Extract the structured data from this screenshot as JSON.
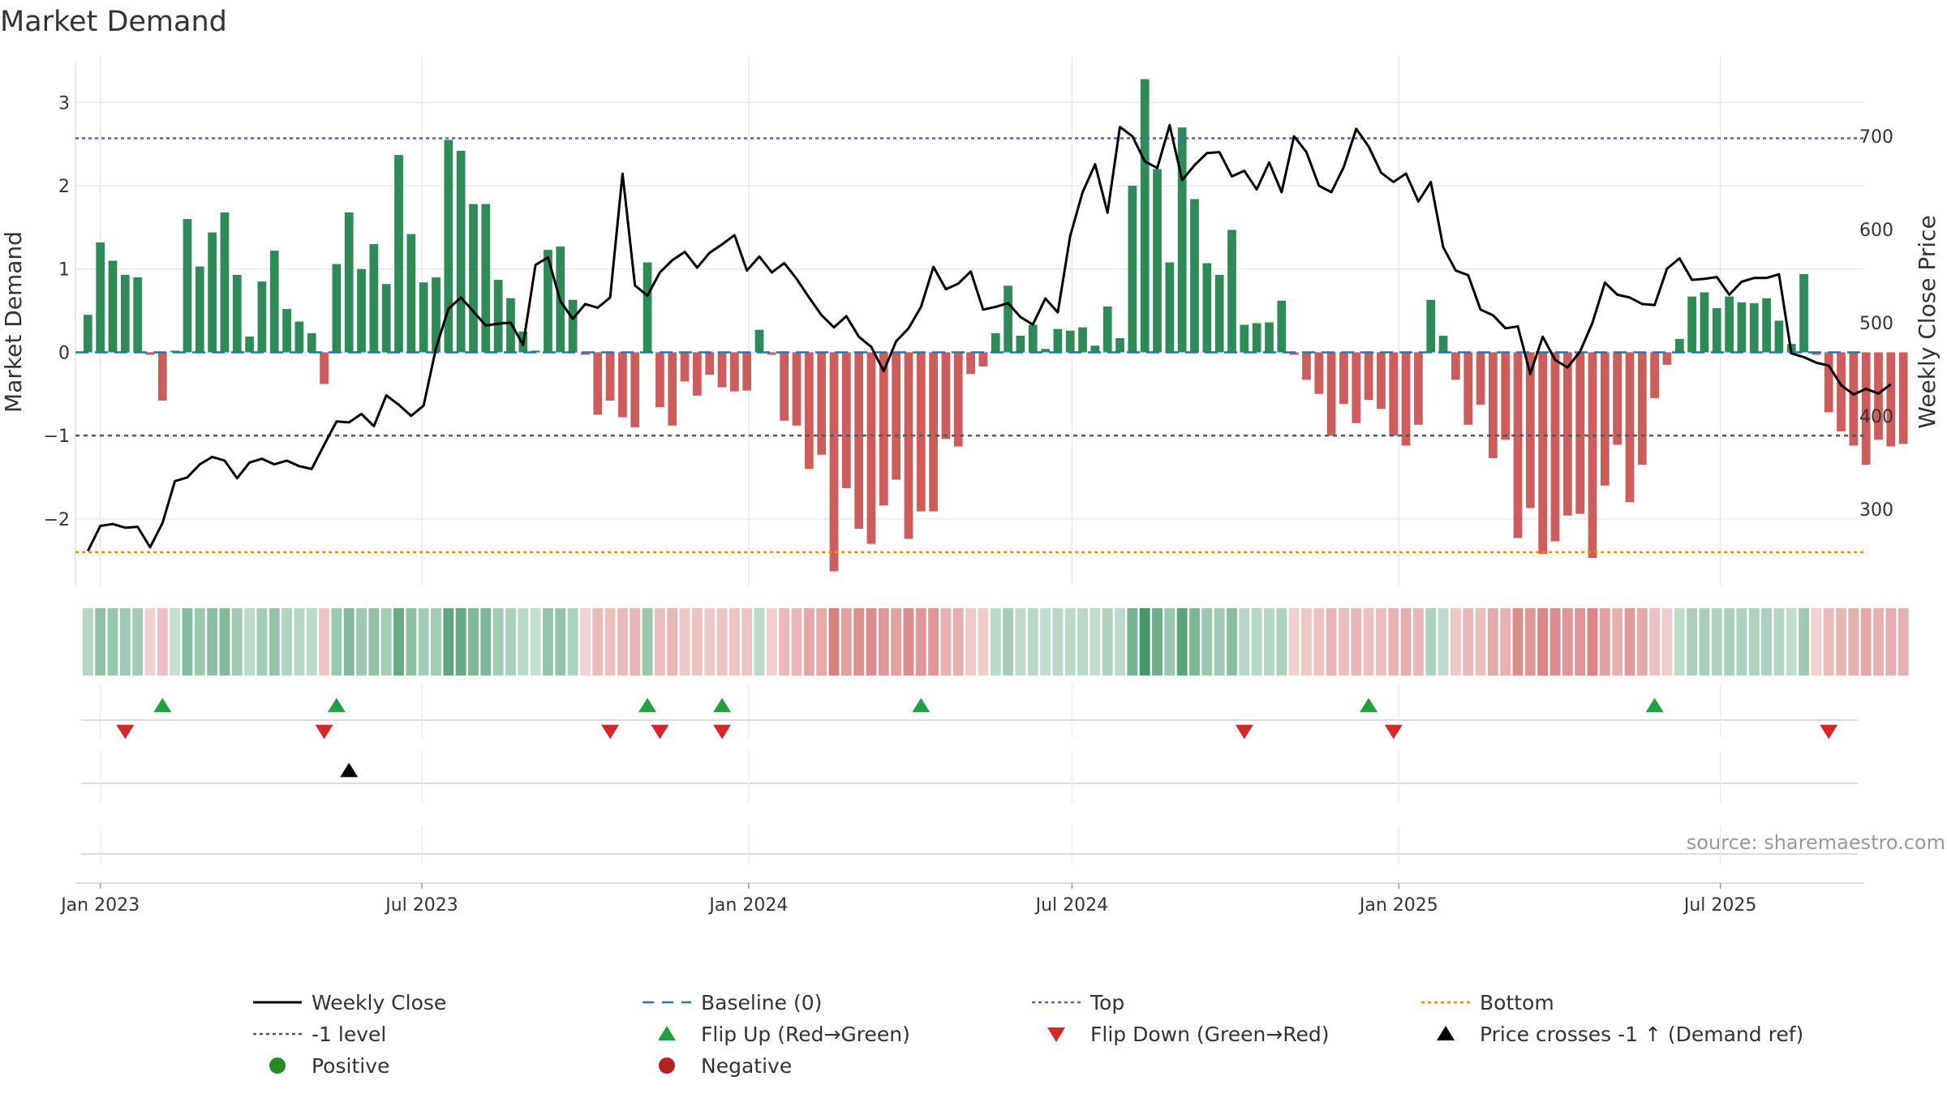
{
  "chart_data": {
    "type": "bar",
    "title": "Market Demand",
    "ylabel": "Market Demand",
    "y2label": "Weekly Close Price",
    "ylim": [
      -2.8,
      3.5
    ],
    "y2lim": [
      218,
      781
    ],
    "yticks": [
      3,
      2,
      1,
      0,
      -1,
      -2
    ],
    "ytick_labels": [
      "3",
      "2",
      "1",
      "0",
      "−1",
      "−2"
    ],
    "y2ticks": [
      700,
      600,
      500,
      400,
      300
    ],
    "y2tick_labels": [
      "700",
      "600",
      "500",
      "400",
      "300"
    ],
    "x_start": "2022-12-18",
    "x_end": "2025-09-20",
    "x_ticks": [
      {
        "label": "Jan 2023",
        "date": "2023-01-01"
      },
      {
        "label": "Jul 2023",
        "date": "2023-07-01"
      },
      {
        "label": "Jan 2024",
        "date": "2024-01-01"
      },
      {
        "label": "Jul 2024",
        "date": "2024-07-01"
      },
      {
        "label": "Jan 2025",
        "date": "2025-01-01"
      },
      {
        "label": "Jul 2025",
        "date": "2025-07-01"
      }
    ],
    "levels": {
      "top": 2.57,
      "bottom": -2.4,
      "minus_one": -1,
      "baseline": 0
    },
    "demand": [
      0.45,
      1.32,
      1.1,
      0.93,
      0.9,
      -0.03,
      -0.58,
      0.02,
      1.6,
      1.03,
      1.44,
      1.68,
      0.93,
      0.19,
      0.85,
      1.22,
      0.52,
      0.37,
      0.23,
      -0.38,
      1.06,
      1.68,
      1.0,
      1.3,
      0.82,
      2.37,
      1.42,
      0.84,
      0.9,
      2.55,
      2.42,
      1.78,
      1.78,
      0.87,
      0.65,
      0.25,
      0.02,
      1.23,
      1.27,
      0.63,
      -0.03,
      -0.75,
      -0.58,
      -0.78,
      -0.9,
      1.08,
      -0.66,
      -0.88,
      -0.35,
      -0.52,
      -0.27,
      -0.42,
      -0.47,
      -0.46,
      0.27,
      -0.03,
      -0.82,
      -0.88,
      -1.4,
      -1.23,
      -2.63,
      -1.63,
      -2.12,
      -2.3,
      -1.84,
      -1.53,
      -2.24,
      -1.91,
      -1.91,
      -1.04,
      -1.13,
      -0.26,
      -0.17,
      0.23,
      0.8,
      0.2,
      0.33,
      0.04,
      0.28,
      0.26,
      0.3,
      0.08,
      0.55,
      0.17,
      2.0,
      3.28,
      2.2,
      1.08,
      2.7,
      1.84,
      1.07,
      0.93,
      1.47,
      0.33,
      0.35,
      0.36,
      0.62,
      -0.03,
      -0.33,
      -0.5,
      -1.0,
      -0.62,
      -0.85,
      -0.57,
      -0.68,
      -1.0,
      -1.12,
      -0.87,
      0.63,
      0.2,
      -0.33,
      -0.87,
      -0.63,
      -1.27,
      -1.05,
      -2.23,
      -1.87,
      -2.42,
      -2.27,
      -1.96,
      -1.94,
      -2.47,
      -1.6,
      -1.11,
      -1.8,
      -1.35,
      -0.55,
      -0.15,
      0.16,
      0.67,
      0.72,
      0.53,
      0.67,
      0.6,
      0.59,
      0.65,
      0.38,
      0.1,
      0.94,
      -0.03,
      -0.72,
      -0.95,
      -1.12,
      -1.35,
      -1.05,
      -1.13,
      -1.1
    ],
    "close": [
      255,
      282,
      284,
      280,
      281,
      259,
      285,
      330,
      334,
      348,
      356,
      352,
      333,
      350,
      354,
      348,
      352,
      346,
      343,
      369,
      394,
      393,
      402,
      389,
      422,
      412,
      400,
      411,
      473,
      515,
      527,
      512,
      497,
      499,
      500,
      476,
      562,
      570,
      523,
      504,
      520,
      516,
      527,
      660,
      540,
      529,
      554,
      567,
      576,
      559,
      575,
      584,
      594,
      556,
      571,
      554,
      564,
      547,
      527,
      508,
      495,
      507,
      485,
      474,
      448,
      480,
      494,
      517,
      560,
      536,
      542,
      555,
      514,
      517,
      521,
      506,
      498,
      526,
      511,
      593,
      640,
      670,
      618,
      710,
      700,
      673,
      666,
      712,
      653,
      669,
      682,
      683,
      657,
      663,
      643,
      672,
      640,
      700,
      683,
      647,
      640,
      667,
      708,
      689,
      661,
      651,
      660,
      630,
      651,
      581,
      556,
      551,
      514,
      508,
      494,
      496,
      445,
      485,
      460,
      452,
      469,
      500,
      543,
      530,
      527,
      520,
      519,
      558,
      569,
      546,
      547,
      549,
      530,
      544,
      548,
      548,
      552,
      467,
      463,
      457,
      454,
      433,
      423,
      429,
      424,
      434
    ],
    "flip_up_dates": [
      "2023-02-05",
      "2023-05-14",
      "2023-11-05",
      "2023-12-17",
      "2024-04-07",
      "2024-12-15",
      "2025-05-25"
    ],
    "flip_down_dates": [
      "2023-01-15",
      "2023-05-07",
      "2023-10-15",
      "2023-11-12",
      "2023-12-17",
      "2024-10-06",
      "2024-12-29",
      "2025-08-31"
    ],
    "cross_up_dates": [
      "2023-05-21"
    ],
    "source_note": "source: sharemaestro.com",
    "legend": [
      {
        "label": "Weekly Close",
        "kind": "line",
        "color": "#000000"
      },
      {
        "label": "Baseline (0)",
        "kind": "dash",
        "color": "#1f77b4"
      },
      {
        "label": "Top",
        "kind": "dot",
        "color": "#5a5ad6"
      },
      {
        "label": "Bottom",
        "kind": "dot",
        "color": "#ff8c00"
      },
      {
        "label": "-1 level",
        "kind": "dot",
        "color": "#555555"
      },
      {
        "label": "Flip Up (Red→Green)",
        "kind": "triangle-up",
        "color": "#22a040"
      },
      {
        "label": "Flip Down (Green→Red)",
        "kind": "triangle-down",
        "color": "#d62728"
      },
      {
        "label": "Price crosses -1 ↑ (Demand ref)",
        "kind": "triangle-up",
        "color": "#000000"
      },
      {
        "label": "Positive",
        "kind": "circle",
        "color": "#228b22"
      },
      {
        "label": "Negative",
        "kind": "circle",
        "color": "#b22222"
      }
    ],
    "colors": {
      "positive_bar": "#2e8b57",
      "negative_bar": "#cd5c5c",
      "close_line": "#000000",
      "top": "#5a5ad6",
      "bottom": "#ff8c00",
      "minus_one": "#555555",
      "baseline": "#1f77b4",
      "grid": "#e8e8e8"
    }
  }
}
